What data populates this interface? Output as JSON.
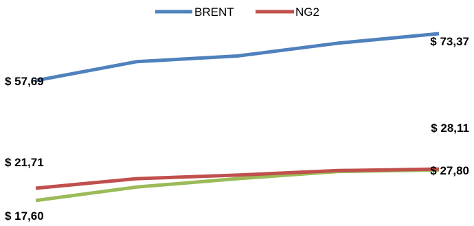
{
  "chart_data": {
    "type": "line",
    "x": [
      1,
      2,
      3,
      4,
      5
    ],
    "ylim": [
      15,
      78
    ],
    "grid": false,
    "legend_position": "top-center",
    "series": [
      {
        "name": "BRENT",
        "color": "#4F81BD",
        "values": [
          57.69,
          64.0,
          65.9,
          70.2,
          73.37
        ],
        "labels": [
          {
            "index": 0,
            "text": "$ 57,69"
          },
          {
            "index": 4,
            "text": "$ 73,37"
          }
        ]
      },
      {
        "name": "NG2",
        "color": "#C0504D",
        "values": [
          21.71,
          24.9,
          26.1,
          27.6,
          28.11
        ],
        "labels": [
          {
            "index": 0,
            "text": "$ 21,71"
          },
          {
            "index": 4,
            "text": "$ 28,11"
          }
        ]
      },
      {
        "name": "",
        "color": "#9BBB59",
        "values": [
          17.6,
          22.1,
          24.9,
          27.3,
          27.8
        ],
        "labels": [
          {
            "index": 0,
            "text": "$ 17,60"
          },
          {
            "index": 4,
            "text": "$ 27,80"
          }
        ]
      }
    ],
    "legend": [
      {
        "name": "BRENT",
        "color": "#4F81BD"
      },
      {
        "name": "NG2",
        "color": "#C0504D"
      }
    ]
  }
}
